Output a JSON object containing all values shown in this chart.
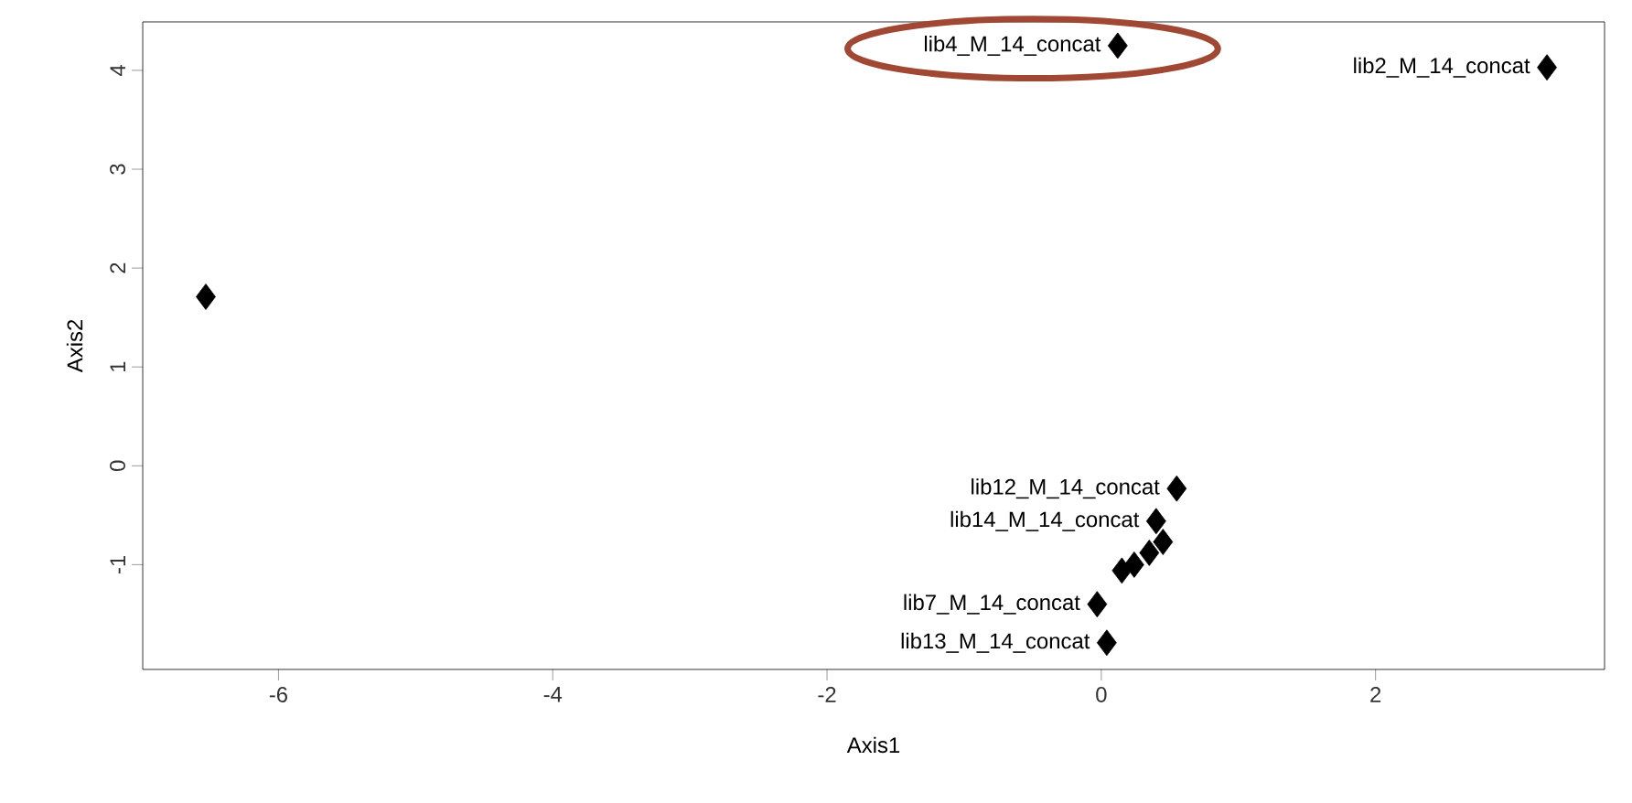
{
  "chart_data": {
    "type": "scatter",
    "xlabel": "Axis1",
    "ylabel": "Axis2",
    "x": [
      0.12,
      3.25,
      -6.53,
      0.55,
      0.4,
      0.45,
      0.35,
      0.24,
      0.15,
      -0.03,
      0.04
    ],
    "series": [
      {
        "color": "#000000",
        "values": [
          4.25,
          4.03,
          1.71,
          -0.23,
          -0.56,
          -0.77,
          -0.88,
          -1.0,
          -1.06,
          -1.4,
          -1.79
        ]
      }
    ],
    "marker": "diamond",
    "xlim": [
      -6.99,
      3.67
    ],
    "ylim": [
      -2.06,
      4.49
    ],
    "xticks": [
      -6,
      -4,
      -2,
      0,
      2
    ],
    "yticks": [
      -1,
      0,
      1,
      2,
      3,
      4
    ],
    "grid": false,
    "annotations": [
      {
        "text": "lib4_M_14_concat",
        "x": 0.12,
        "y": 4.25
      },
      {
        "text": "lib2_M_14_concat",
        "x": 3.25,
        "y": 4.03
      },
      {
        "text": "lib12_M_14_concat",
        "x": 0.55,
        "y": -0.23
      },
      {
        "text": "lib14_M_14_concat",
        "x": 0.4,
        "y": -0.56
      },
      {
        "text": "lib7_M_14_concat",
        "x": -0.03,
        "y": -1.4
      },
      {
        "text": "lib13_M_14_concat",
        "x": 0.04,
        "y": -1.79
      }
    ]
  }
}
